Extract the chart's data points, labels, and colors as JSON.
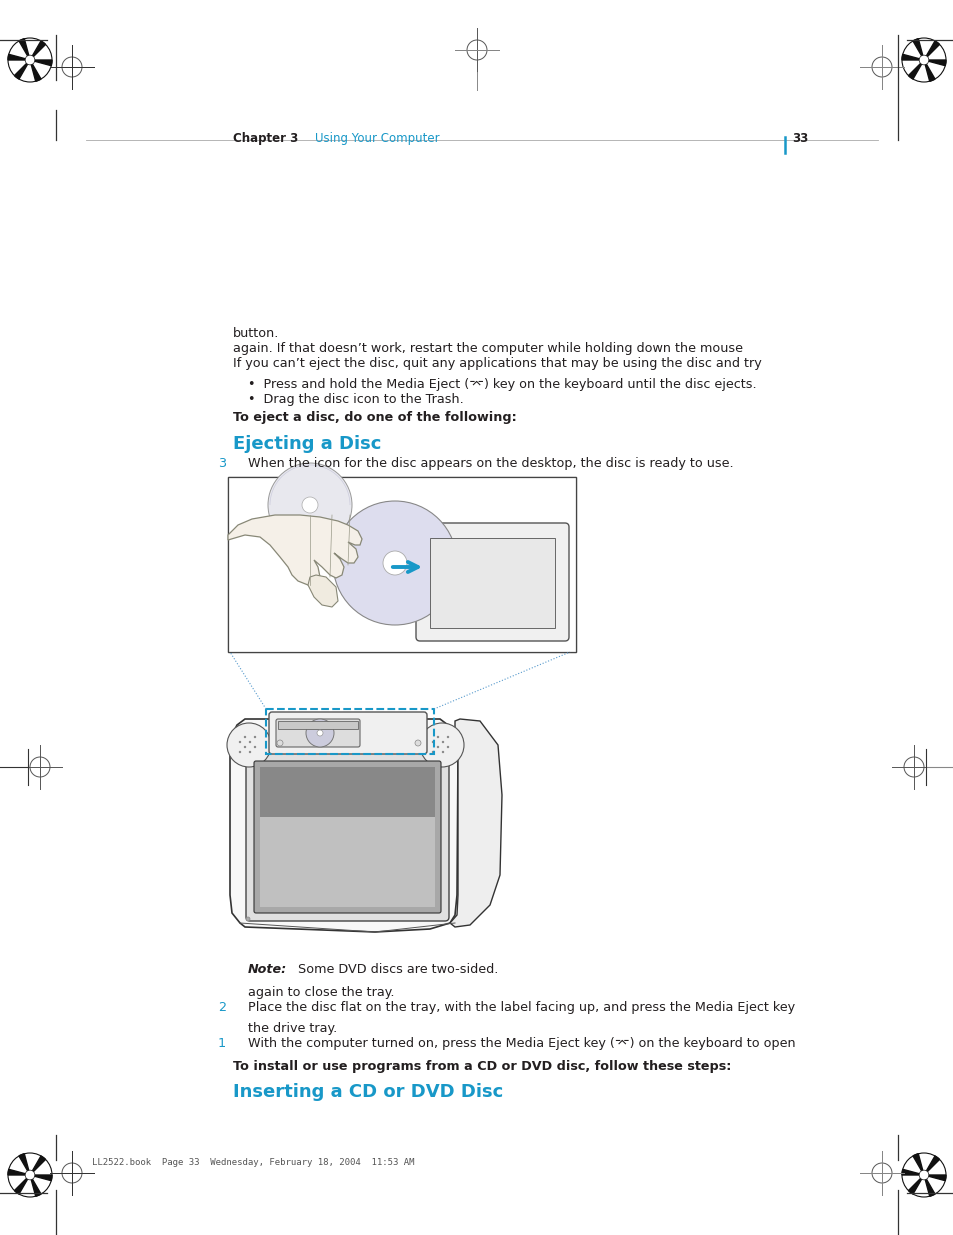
{
  "bg_color": "#ffffff",
  "cyan_color": "#1898c8",
  "black_color": "#231f20",
  "dark_gray": "#333333",
  "mid_gray": "#888888",
  "light_gray": "#cccccc",
  "header_text": "LL2522.book  Page 33  Wednesday, February 18, 2004  11:53 AM",
  "section_title": "Inserting a CD or DVD Disc",
  "bold_intro": "To install or use programs from a CD or DVD disc, follow these steps:",
  "step1_num": "1",
  "step1_line1": "With the computer turned on, press the Media Eject key (⌤) on the keyboard to open",
  "step1_line2": "the drive tray.",
  "step2_num": "2",
  "step2_line1": "Place the disc flat on the tray, with the label facing up, and press the Media Eject key",
  "step2_line2": "again to close the tray.",
  "note_bold": "Note:",
  "note_rest": "  Some DVD discs are two-sided.",
  "step3_num": "3",
  "step3_text": "When the icon for the disc appears on the desktop, the disc is ready to use.",
  "section2_title": "Ejecting a Disc",
  "eject_bold": "To eject a disc, do one of the following:",
  "bullet1": "Drag the disc icon to the Trash.",
  "bullet2": "Press and hold the Media Eject (⌤) key on the keyboard until the disc ejects.",
  "eject_para1": "If you can’t eject the disc, quit any applications that may be using the disc and try",
  "eject_para2": "again. If that doesn’t work, restart the computer while holding down the mouse",
  "eject_para3": "button.",
  "footer_chapter": "Chapter 3",
  "footer_section": "Using Your Computer",
  "footer_page": "33"
}
